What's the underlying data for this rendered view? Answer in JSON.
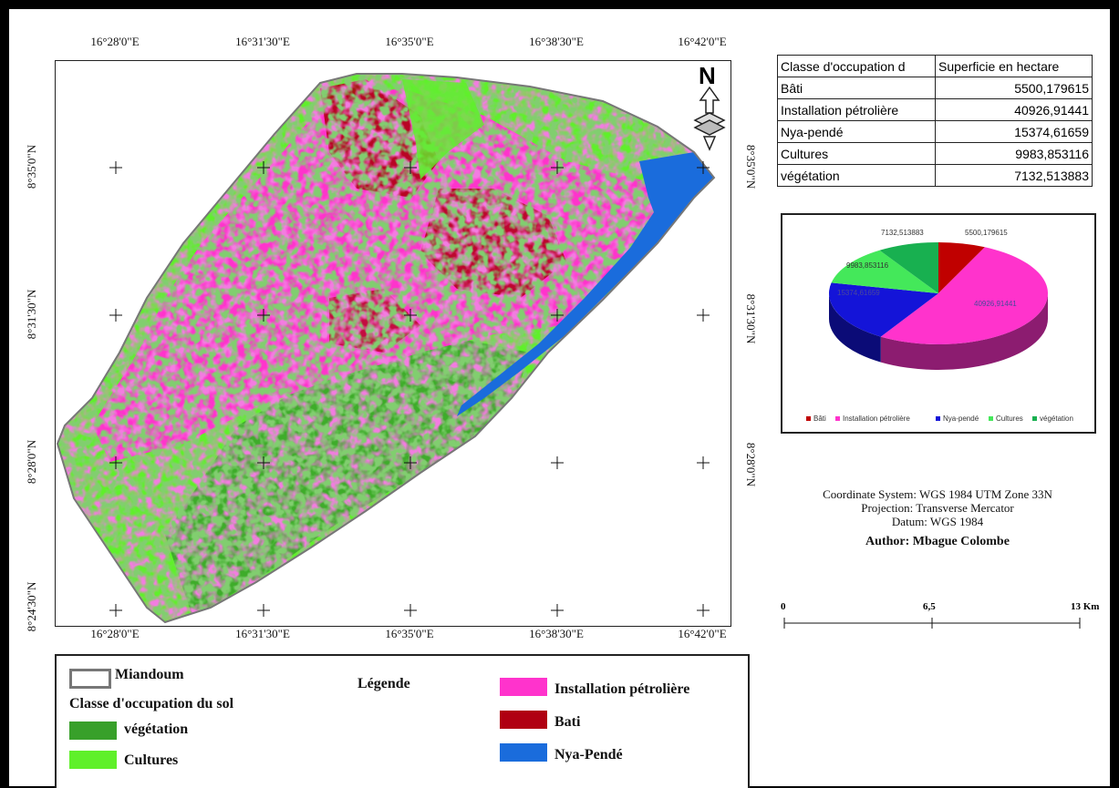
{
  "coordinates": {
    "top_labels": [
      "16°28'0\"E",
      "16°31'30\"E",
      "16°35'0\"E",
      "16°38'30\"E",
      "16°42'0\"E"
    ],
    "bottom_labels": [
      "16°28'0\"E",
      "16°31'30\"E",
      "16°35'0\"E",
      "16°38'30\"E",
      "16°42'0\"E"
    ],
    "left_labels": [
      "8°35'0\"N",
      "8°31'30\"N",
      "8°28'0\"N",
      "8°24'30\"N"
    ],
    "right_labels": [
      "8°35'0\"N",
      "8°31'30\"N",
      "8°28'0\"N"
    ]
  },
  "north_arrow": {
    "letter": "N"
  },
  "table": {
    "header_class": "Classe d'occupation d",
    "header_area": "Superficie en hectare",
    "rows": [
      {
        "class": "Bâti",
        "area": "5500,179615"
      },
      {
        "class": "Installation pétrolière",
        "area": "40926,91441"
      },
      {
        "class": "Nya-pendé",
        "area": "15374,61659"
      },
      {
        "class": "Cultures",
        "area": "9983,853116"
      },
      {
        "class": "végétation",
        "area": "7132,513883"
      }
    ]
  },
  "pie": {
    "labels": [
      "5500,179615",
      "40926,91441",
      "15374,61659",
      "9983,853116",
      "7132,513883"
    ],
    "legend": [
      "Bâti",
      "Installation pétrolière",
      "Nya-pendé",
      "Cultures",
      "végétation"
    ],
    "colors": [
      "#c00000",
      "#ff33cc",
      "#1414d8",
      "#44e85a",
      "#18b050"
    ]
  },
  "chart_data": {
    "type": "pie",
    "categories": [
      "Bâti",
      "Installation pétrolière",
      "Nya-pendé",
      "Cultures",
      "végétation"
    ],
    "values": [
      5500.179615,
      40926.91441,
      15374.61659,
      9983.853116,
      7132.513883
    ],
    "title": "",
    "legend_position": "bottom"
  },
  "info": {
    "line1": "Coordinate System: WGS 1984 UTM Zone 33N",
    "line2": "Projection: Transverse Mercator",
    "line3": "Datum: WGS 1984",
    "author": "Author: Mbague Colombe"
  },
  "scale": {
    "l0": "0",
    "l1": "6,5",
    "l2": "13 Km"
  },
  "legend": {
    "title": "Légende",
    "boundary": "Miandoum",
    "class_heading": "Classe d'occupation du sol",
    "vegetation": "végétation",
    "cultures": "Cultures",
    "installation": "Installation pétrolière",
    "bati": "Bati",
    "nya": "Nya-Pendé",
    "colors": {
      "vegetation": "#38a02a",
      "cultures": "#5ff02a",
      "installation": "#ff33cc",
      "bati": "#b00012",
      "nya": "#1a6cdc"
    }
  },
  "map_colors": {
    "installation": "#ff33cc",
    "bati": "#b00012",
    "nya": "#1a6cdc",
    "cultures": "#5ff02a",
    "vegetation": "#38a02a"
  }
}
